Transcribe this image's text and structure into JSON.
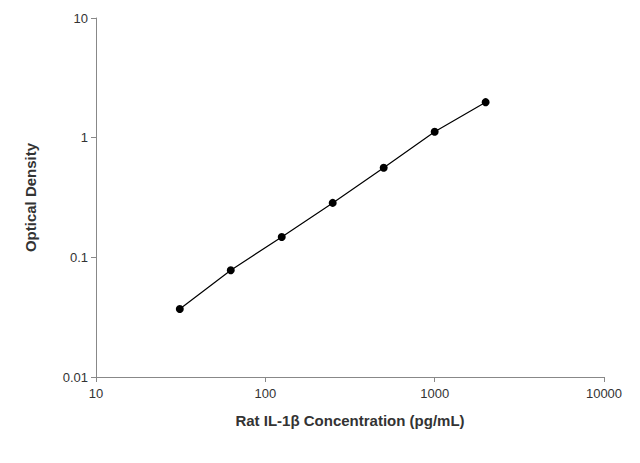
{
  "chart_data": {
    "type": "line",
    "log": true,
    "grid": false,
    "x_label": "Rat IL-1β Concentration (pg/mL)",
    "y_label": "Optical Density",
    "x": [
      31.25,
      62.5,
      125,
      250,
      500,
      1000,
      2000
    ],
    "values": [
      0.037,
      0.078,
      0.148,
      0.285,
      0.56,
      1.12,
      1.98
    ],
    "color": "#000000",
    "marker": "circle",
    "line_style": "solid",
    "xlim": [
      10,
      10000
    ],
    "xticks": [
      10,
      100,
      1000,
      10000
    ],
    "ylim": [
      0.01,
      10
    ],
    "yticks": [
      0.01,
      0.1,
      1,
      10
    ]
  }
}
